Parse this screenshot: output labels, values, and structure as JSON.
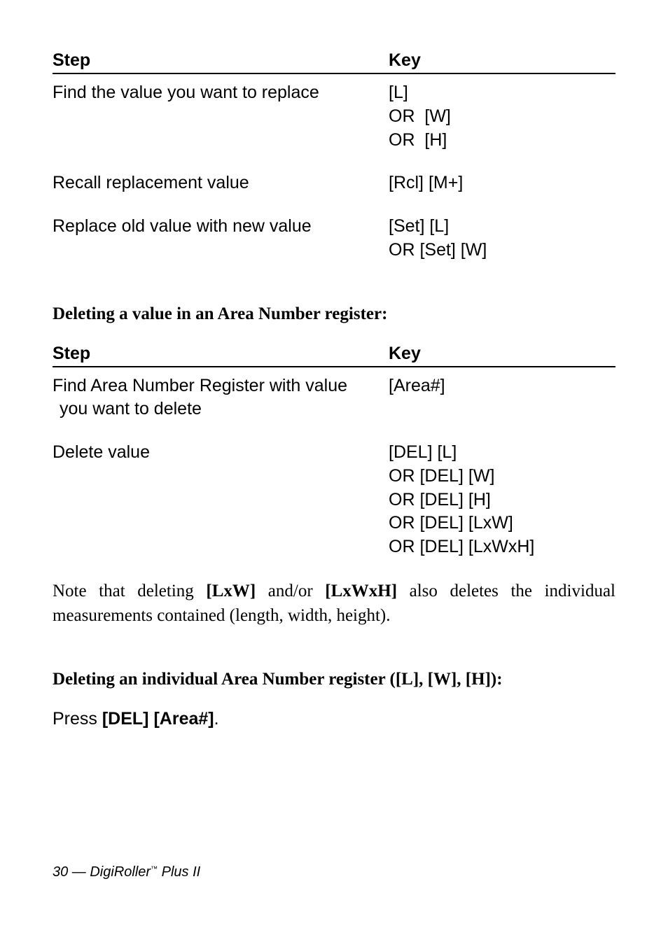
{
  "table1": {
    "header_step": "Step",
    "header_key": "Key",
    "rows": [
      {
        "step": "Find the value you want to replace",
        "key": "[L]\nOR  [W]\nOR  [H]"
      },
      {
        "step": "Recall replacement value",
        "key": "[Rcl] [M+]"
      },
      {
        "step": "Replace old value with new value",
        "key": "[Set] [L]\nOR [Set] [W]"
      }
    ]
  },
  "heading1": "Deleting a value in an Area Number register:",
  "table2": {
    "header_step": "Step",
    "header_key": "Key",
    "rows": [
      {
        "step_line1": "Find Area Number Register with value",
        "step_line2": "you want to delete",
        "key": "[Area#]"
      },
      {
        "step": "Delete value",
        "key": "[DEL] [L]\nOR [DEL] [W]\nOR [DEL] [H]\nOR [DEL] [LxW]\nOR [DEL] [LxWxH]"
      }
    ]
  },
  "note_prefix": "Note that deleting ",
  "note_b1": "[LxW]",
  "note_mid": " and/or ",
  "note_b2": "[LxWxH]",
  "note_suffix": " also deletes the individual measurements contained (length, width, height).",
  "heading2": "Deleting an individual Area Number register ([L], [W], [H]):",
  "press_prefix": "Press ",
  "press_bold": "[DEL] [Area#]",
  "press_suffix": ".",
  "footer_page": "30 — DigiRoller",
  "footer_tm": "™",
  "footer_product": " Plus II"
}
